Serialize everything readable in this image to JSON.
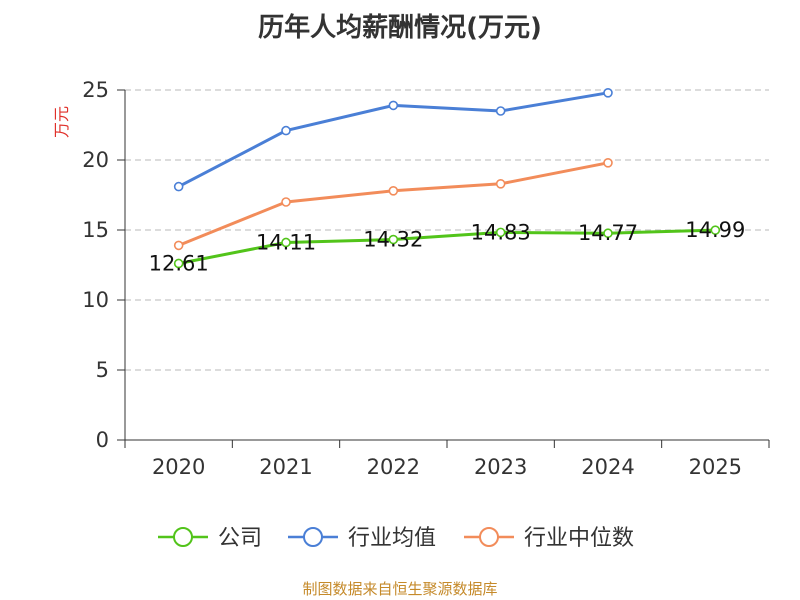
{
  "chart_data": {
    "type": "line",
    "title": "历年人均薪酬情况(万元)",
    "ylabel": "万元",
    "xlabel": "",
    "categories": [
      "2020",
      "2021",
      "2022",
      "2023",
      "2024",
      "2025"
    ],
    "ylim": [
      0,
      25
    ],
    "yticks": [
      0,
      5,
      10,
      15,
      20,
      25
    ],
    "grid": true,
    "legend_position": "bottom",
    "series": [
      {
        "name": "公司",
        "color": "#52c41a",
        "values": [
          12.61,
          14.11,
          14.32,
          14.83,
          14.77,
          14.99
        ],
        "data_labels": [
          "12.61",
          "14.11",
          "14.32",
          "14.83",
          "14.77",
          "14.99"
        ]
      },
      {
        "name": "行业均值",
        "color": "#4a7fd6",
        "values": [
          18.1,
          22.1,
          23.9,
          23.5,
          24.8,
          null
        ]
      },
      {
        "name": "行业中位数",
        "color": "#f28c5a",
        "values": [
          13.9,
          17.0,
          17.8,
          18.3,
          19.8,
          null
        ]
      }
    ]
  },
  "footer": "制图数据来自恒生聚源数据库"
}
